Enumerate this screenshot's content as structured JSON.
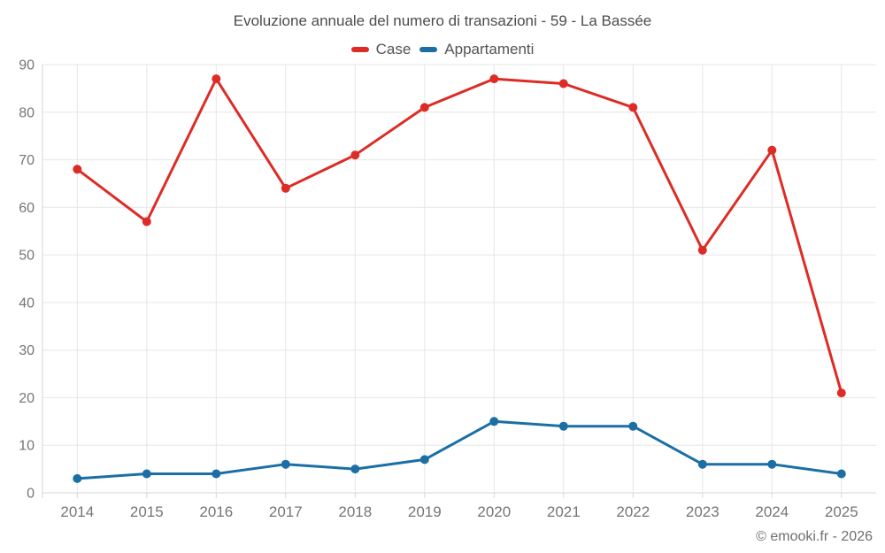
{
  "title": "Evoluzione annuale del numero di transazioni - 59 - La Bassée",
  "footer": "© emooki.fr - 2026",
  "legend": [
    {
      "label": "Case",
      "color": "#dd2c26"
    },
    {
      "label": "Appartamenti",
      "color": "#1b6fa5"
    }
  ],
  "colors": {
    "series_case": "#dd2c26",
    "series_appartamenti": "#1b6fa5",
    "gridline": "#e6e6e6",
    "axis": "#d6d6d6",
    "tick_label": "#757575",
    "title_text": "#4c4c4e"
  },
  "chart_data": {
    "type": "line",
    "title": "Evoluzione annuale del numero di transazioni - 59 - La Bassée",
    "xlabel": "",
    "ylabel": "",
    "categories": [
      "2014",
      "2015",
      "2016",
      "2017",
      "2018",
      "2019",
      "2020",
      "2021",
      "2022",
      "2023",
      "2024",
      "2025"
    ],
    "series": [
      {
        "name": "Case",
        "color": "#dd2c26",
        "values": [
          68,
          57,
          87,
          64,
          71,
          81,
          87,
          86,
          81,
          51,
          72,
          21
        ]
      },
      {
        "name": "Appartamenti",
        "color": "#1b6fa5",
        "values": [
          3,
          4,
          4,
          6,
          5,
          7,
          15,
          14,
          14,
          6,
          6,
          4
        ]
      }
    ],
    "ylim": [
      0,
      90
    ],
    "yticks": [
      0,
      10,
      20,
      30,
      40,
      50,
      60,
      70,
      80,
      90
    ],
    "grid": true,
    "legend_position": "top",
    "marker": "circle"
  }
}
